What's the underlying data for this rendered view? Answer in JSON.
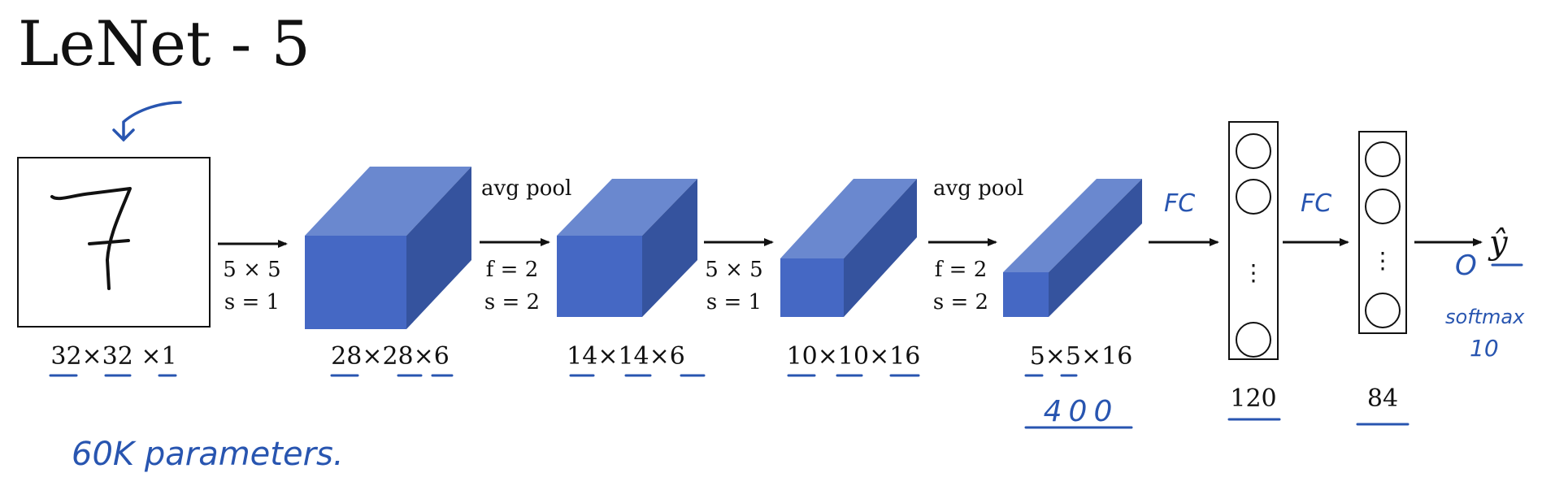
{
  "title": "LeNet - 5",
  "input": {
    "digit": "7",
    "dims": "32×32 ×1"
  },
  "layers": [
    {
      "id": "conv1",
      "dims": "28×28×6"
    },
    {
      "id": "pool1",
      "dims": "14×14×6"
    },
    {
      "id": "conv2",
      "dims": "10×10×16"
    },
    {
      "id": "pool2",
      "dims": "5×5×16"
    }
  ],
  "ops": [
    {
      "id": "conv1-op",
      "label1": "5 × 5",
      "label2": "s = 1"
    },
    {
      "id": "pool1-op",
      "top": "avg pool",
      "label1": "f = 2",
      "label2": "s = 2"
    },
    {
      "id": "conv2-op",
      "label1": "5 × 5",
      "label2": "s = 1"
    },
    {
      "id": "pool2-op",
      "top": "avg pool",
      "label1": "f = 2",
      "label2": "s = 2"
    }
  ],
  "fc": [
    {
      "id": "fc1",
      "size": "120",
      "vdots": "⋮"
    },
    {
      "id": "fc2",
      "size": "84",
      "vdots": "⋮"
    }
  ],
  "output": {
    "symbol": "ŷ"
  },
  "annotations": {
    "fc1": "FC",
    "fc2": "FC",
    "flatten": "400",
    "params": "60K parameters.",
    "softmax": "softmax",
    "classes": "10",
    "output_o": "O"
  },
  "colors": {
    "cube_front": "#4568c4",
    "cube_top": "#6a88cf",
    "cube_side": "#35539e",
    "ink": "#2855b0",
    "line": "#111111"
  }
}
